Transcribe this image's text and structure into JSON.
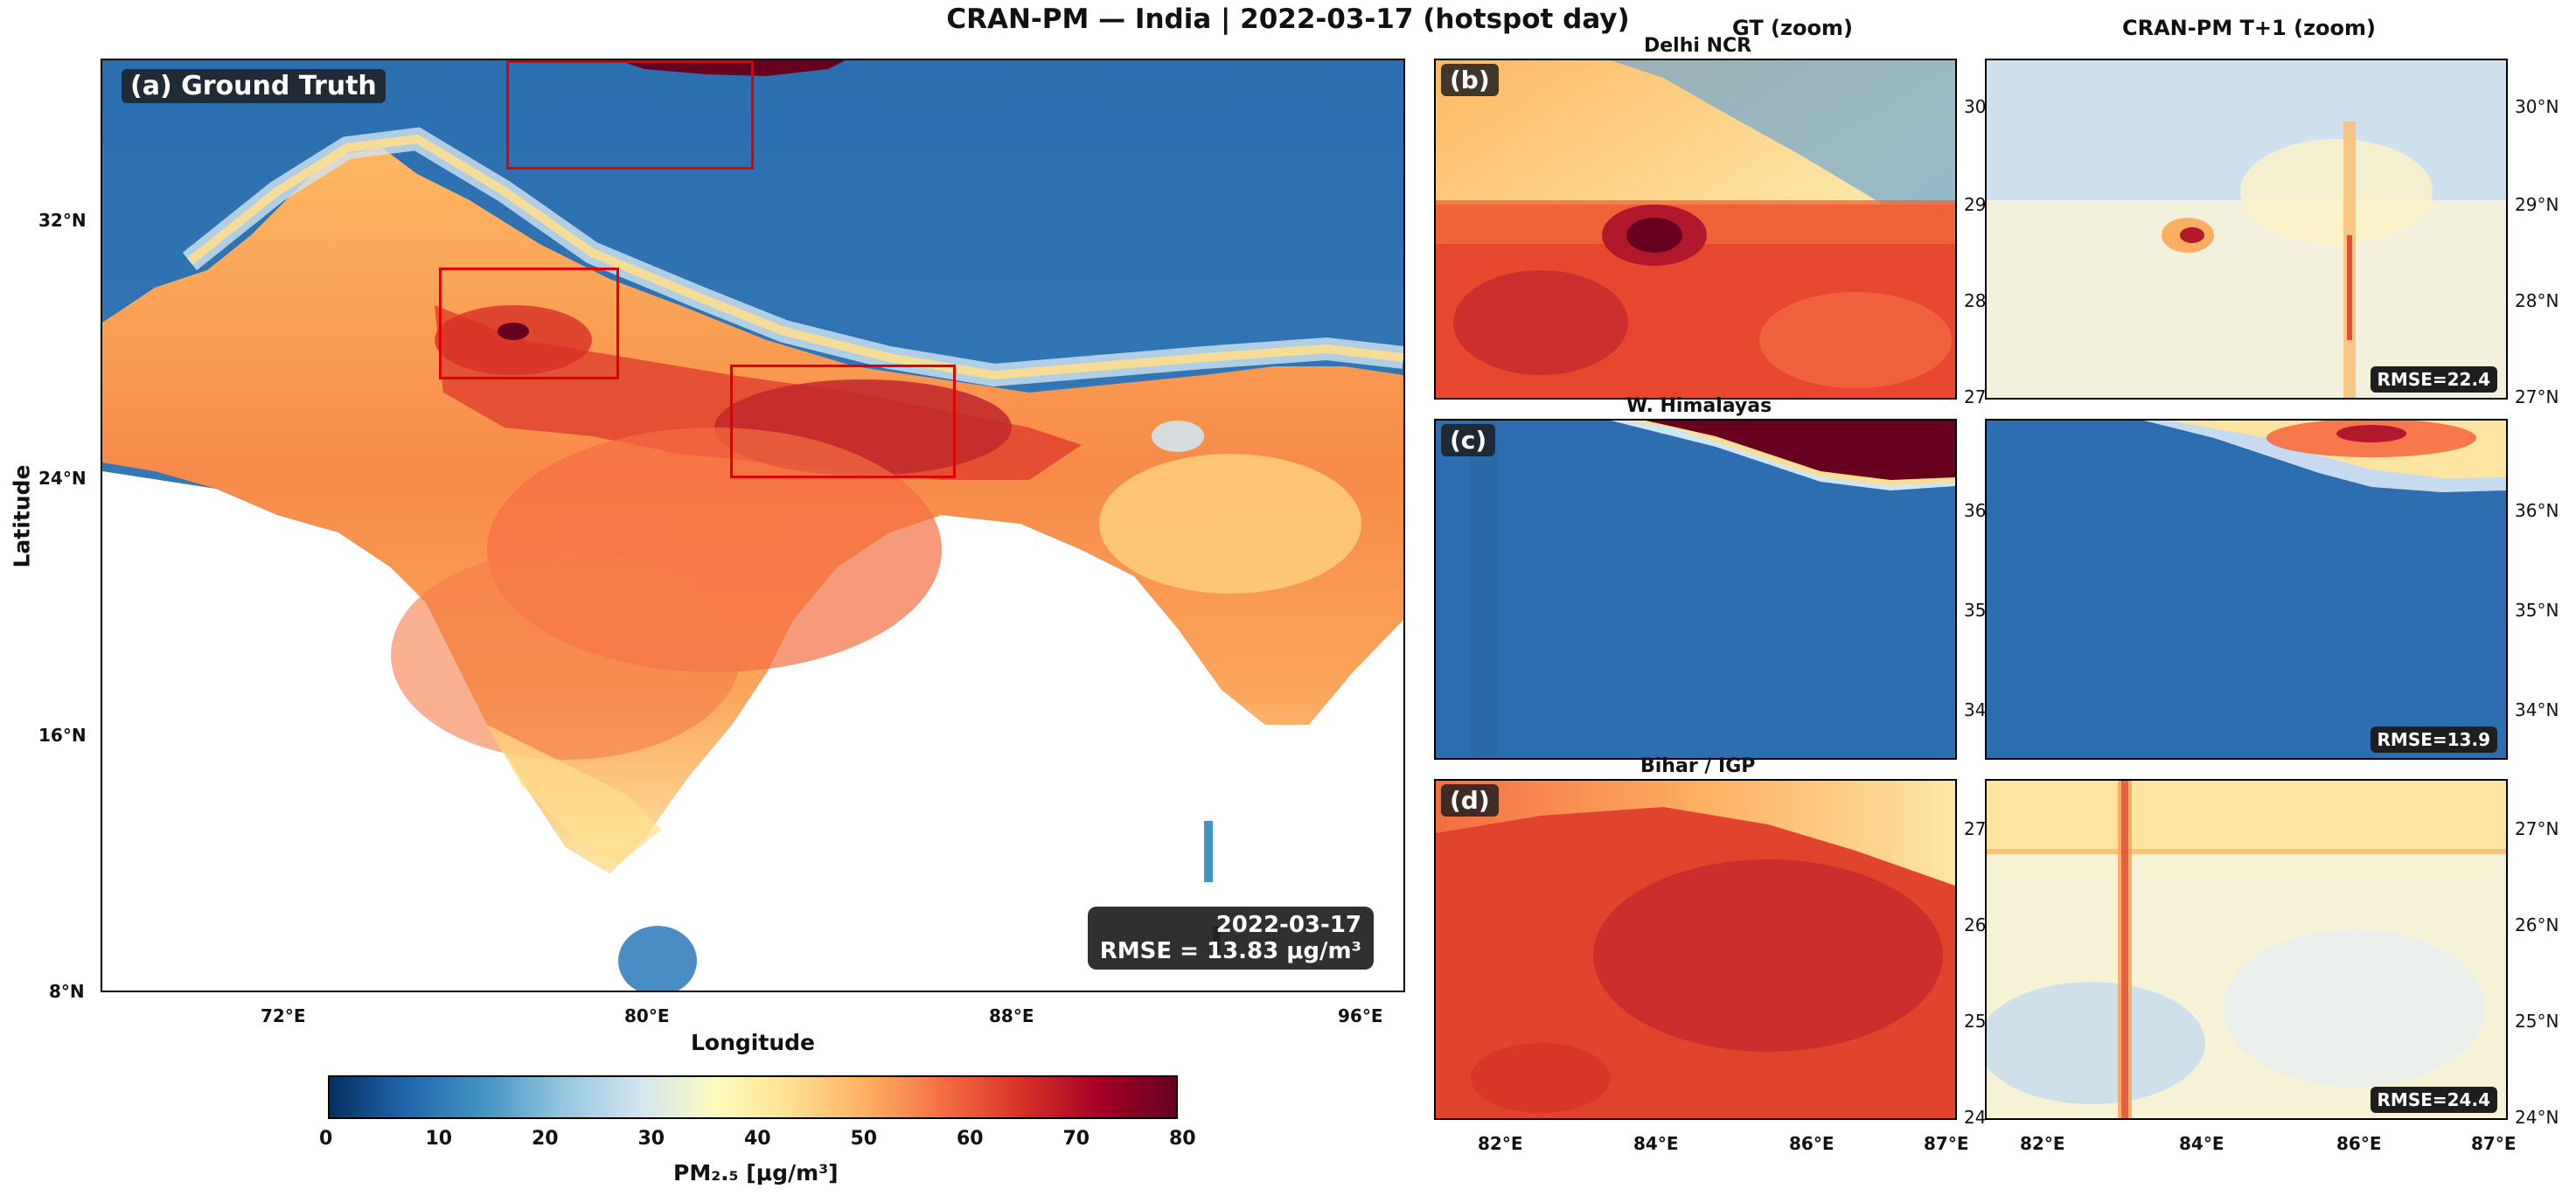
{
  "title": "CRAN-PM — India  |  2022-03-17  (hotspot day)",
  "col_titles": {
    "gt": "GT (zoom)",
    "pred": "CRAN-PM T+1 (zoom)"
  },
  "main_panel": {
    "label": "(a) Ground Truth",
    "xlabel": "Longitude",
    "ylabel": "Latitude",
    "xticks": [
      "72°E",
      "80°E",
      "88°E",
      "96°E"
    ],
    "yticks": [
      "32°N",
      "24°N",
      "16°N",
      "8°N"
    ],
    "info_date": "2022-03-17",
    "info_rmse": "RMSE = 13.83 μg/m³"
  },
  "zoom_panels": [
    {
      "label": "(b)",
      "region": "Delhi NCR",
      "rmse": "RMSE=22.4",
      "gt_yticks": [
        "30",
        "29",
        "28",
        "27"
      ],
      "pred_yticks": [
        "30°N",
        "29°N",
        "28°N",
        "27°N"
      ]
    },
    {
      "label": "(c)",
      "region": "W. Himalayas",
      "rmse": "RMSE=13.9",
      "gt_yticks": [
        "36",
        "35",
        "34"
      ],
      "pred_yticks": [
        "36°N",
        "35°N",
        "34°N"
      ]
    },
    {
      "label": "(d)",
      "region": "Bihar / IGP",
      "rmse": "RMSE=24.4",
      "gt_yticks": [
        "27",
        "26",
        "25",
        "24"
      ],
      "pred_yticks": [
        "27°N",
        "26°N",
        "25°N",
        "24°N"
      ]
    }
  ],
  "zoom_xticks": [
    "82°E",
    "84°E",
    "86°E",
    "87°E"
  ],
  "zoom_xticks_pred": [
    "82°E",
    "84°E",
    "86°E",
    "87°E"
  ],
  "colorbar": {
    "label": "PM₂.₅ [μg/m³]",
    "ticks": [
      "0",
      "10",
      "20",
      "30",
      "40",
      "50",
      "60",
      "70",
      "80"
    ],
    "min": 0,
    "max": 80,
    "colormap": [
      "#053061",
      "#2166ac",
      "#4393c3",
      "#92c5de",
      "#d1e5f0",
      "#fdfbbf",
      "#fee090",
      "#fdae61",
      "#f46d43",
      "#d73027",
      "#a50026",
      "#67001f"
    ]
  }
}
